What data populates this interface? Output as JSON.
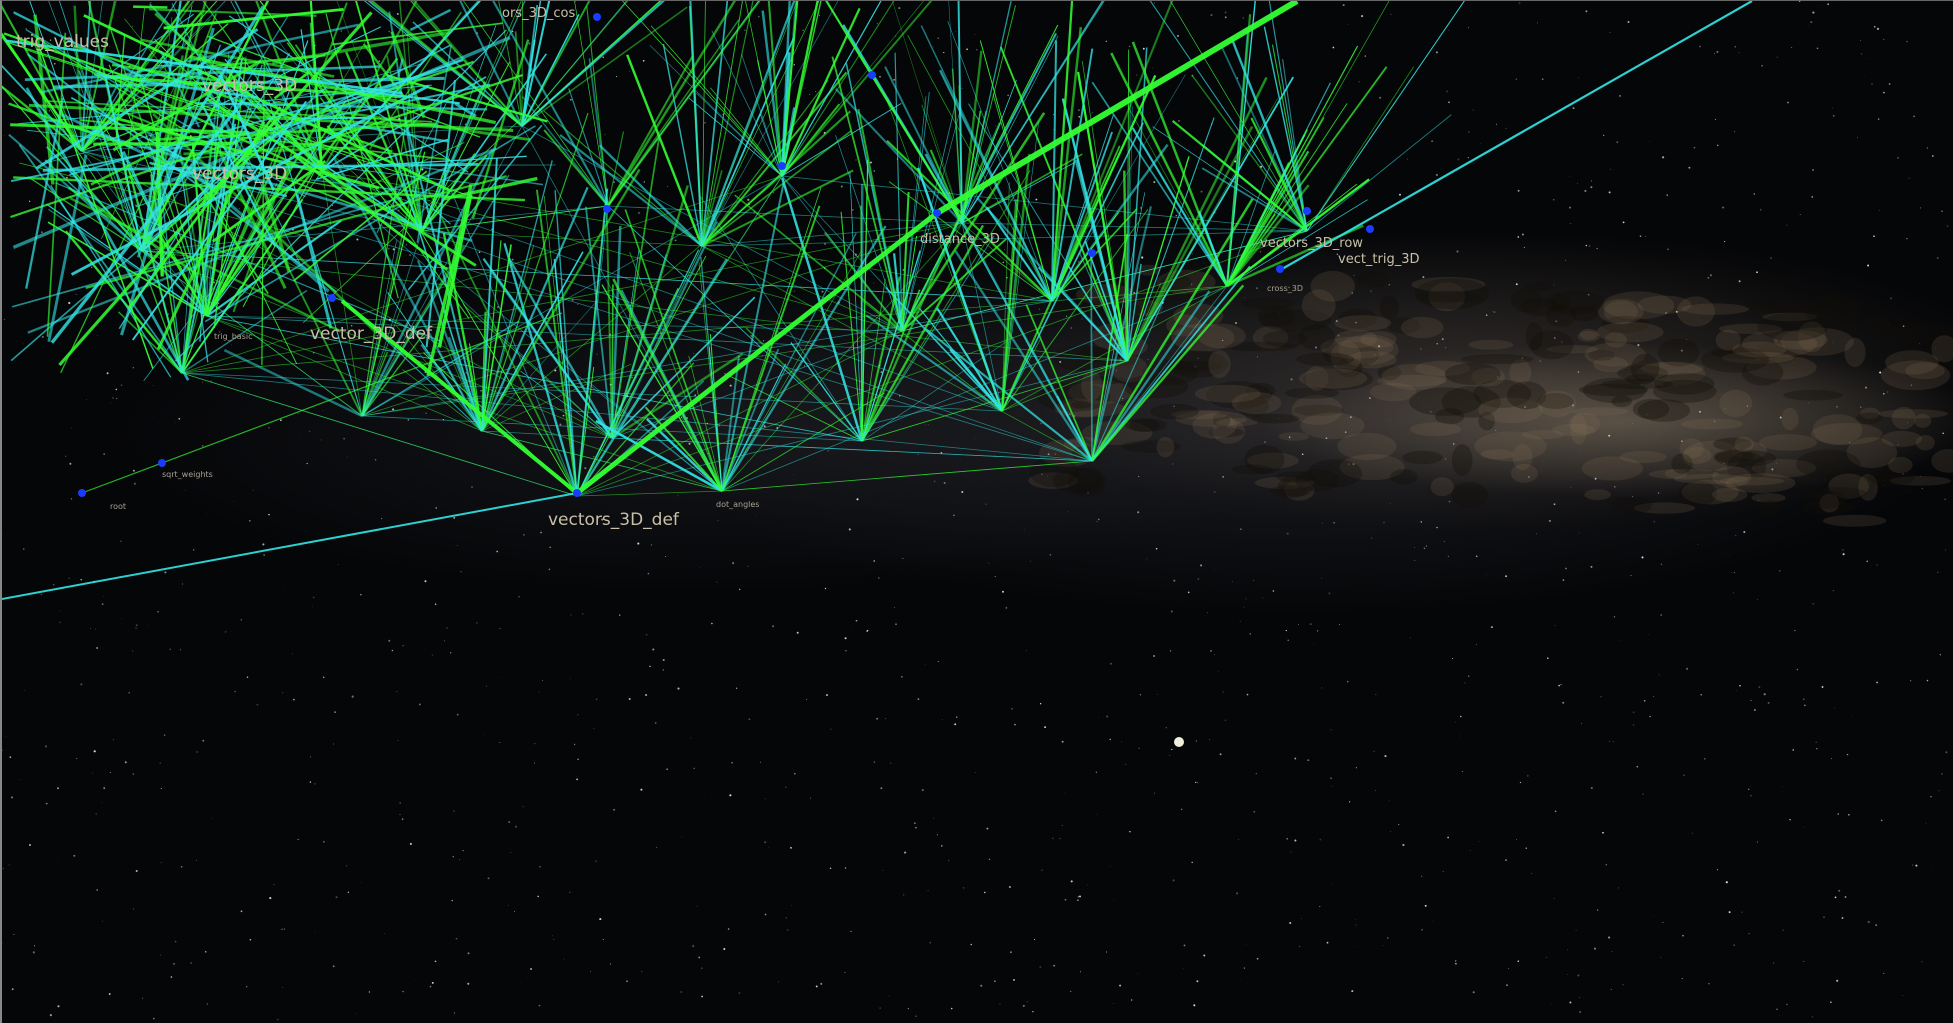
{
  "labels": {
    "vectors_3D_def": "vectors_3D_def",
    "distance_3D": "distance_3D",
    "vectors_3D_row": "vectors_3D_row",
    "vect_trig_3D": "vect_trig_3D",
    "vectors_3D_cos": "ors_3D_cos",
    "vectors_3D_a": "vectors_3D",
    "vector_3D_def_mid": "vector_3D_def",
    "trig_values": "trig_values",
    "trig_basic": "trig_basic",
    "root": "root",
    "cross_3D": "cross_3D",
    "sqrt_weights": "sqrt_weights",
    "dot_angles": "dot_angles",
    "vectors_3D_b": "vectors_3D"
  },
  "colors": {
    "edge_green": "#33ff33",
    "edge_cyan": "#33e6e6",
    "node": "#1a3cff",
    "label": "#c9c0a8"
  }
}
